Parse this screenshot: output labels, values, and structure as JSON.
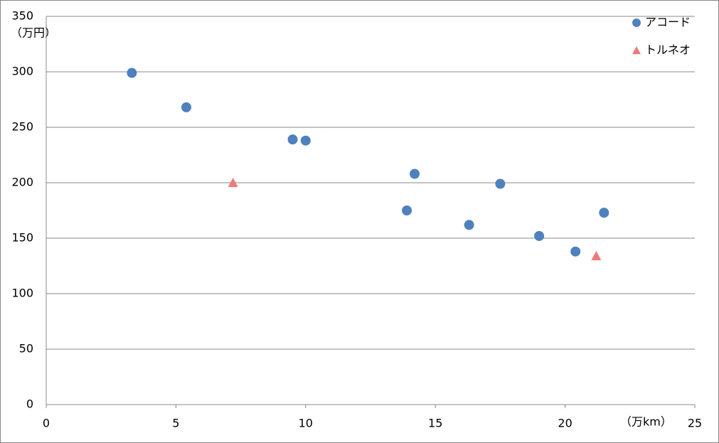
{
  "chart_data": {
    "type": "scatter",
    "y_label": "（万円）",
    "x_label": "（万km）",
    "xlim": [
      0,
      25
    ],
    "xticks": [
      0,
      5,
      10,
      15,
      20,
      25
    ],
    "ylim": [
      0,
      350
    ],
    "yticks": [
      0,
      50,
      100,
      150,
      200,
      250,
      300,
      350
    ],
    "grid": true,
    "legend": "top-right",
    "series": [
      {
        "name": "アコード",
        "color": "#4f81bd",
        "marker": "circle",
        "x": [
          3.3,
          5.4,
          9.5,
          10.0,
          14.2,
          13.9,
          17.5,
          16.3,
          19.0,
          21.5,
          20.4
        ],
        "values": [
          299,
          268,
          239,
          238,
          208,
          175,
          199,
          162,
          152,
          173,
          138
        ]
      },
      {
        "name": "トルネオ",
        "color": "#f07a7a",
        "marker": "triangle",
        "x": [
          7.2,
          21.2
        ],
        "values": [
          200,
          134
        ]
      }
    ]
  }
}
